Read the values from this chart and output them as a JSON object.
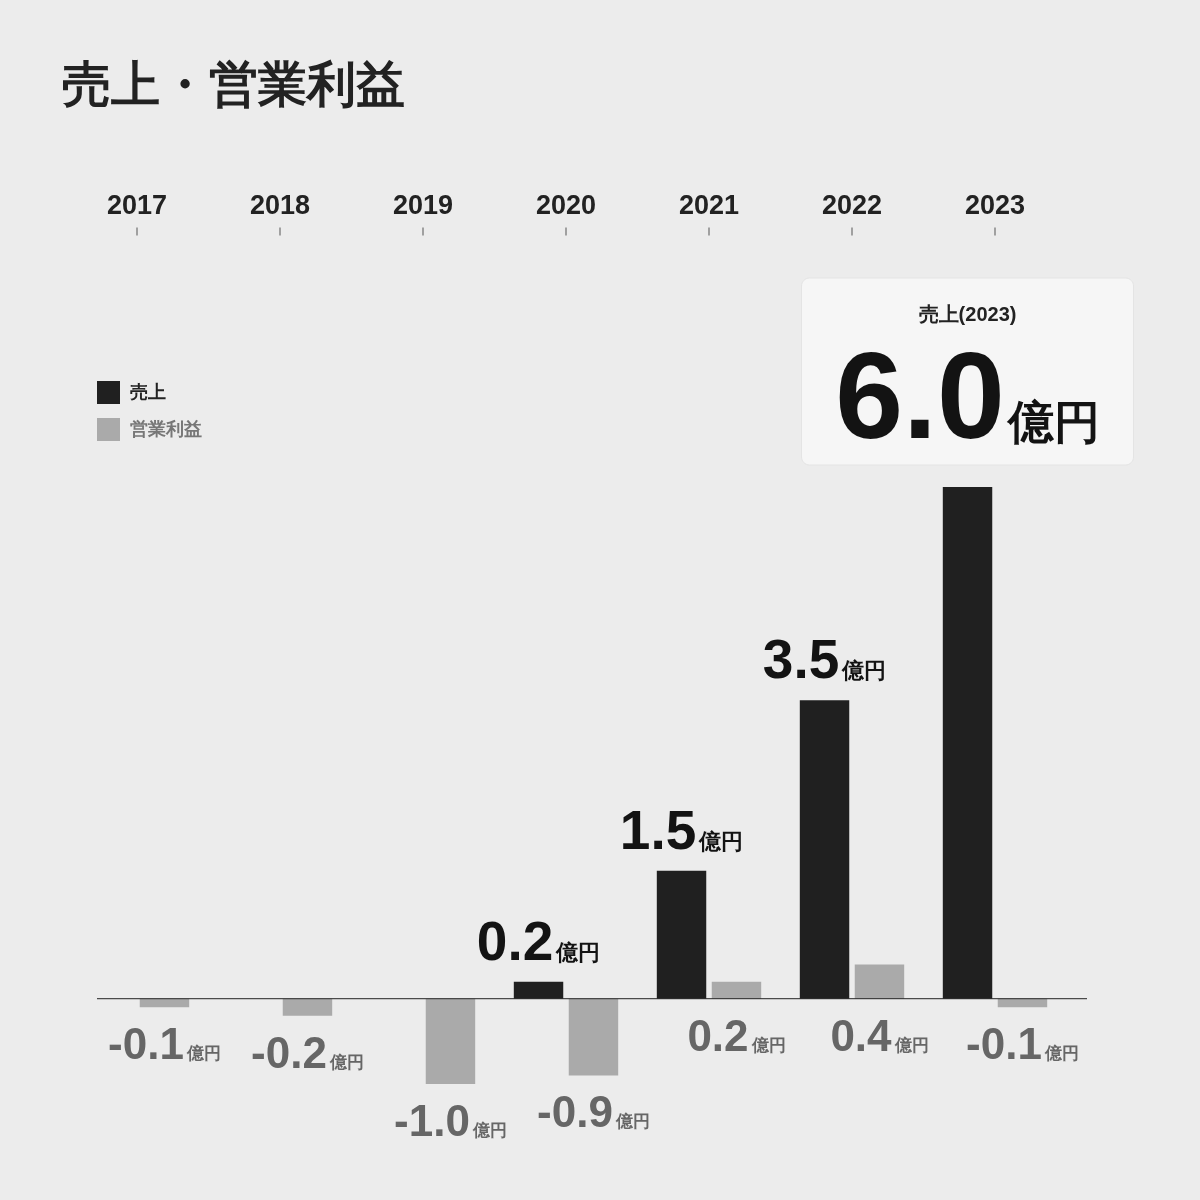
{
  "chart_data": {
    "type": "bar",
    "title": "売上・営業利益",
    "categories": [
      "2017",
      "2018",
      "2019",
      "2020",
      "2021",
      "2022",
      "2023"
    ],
    "series": [
      {
        "name": "売上",
        "color": "#202020",
        "values": [
          null,
          null,
          null,
          0.2,
          1.5,
          3.5,
          6.0
        ],
        "value_labels": [
          null,
          null,
          null,
          "0.2億円",
          "1.5億円",
          "3.5億円",
          "6.0億円"
        ]
      },
      {
        "name": "営業利益",
        "color": "#aaaaaa",
        "values": [
          -0.1,
          -0.2,
          -1.0,
          -0.9,
          0.2,
          0.4,
          -0.1
        ],
        "value_labels": [
          "-0.1億円",
          "-0.2億円",
          "-1.0億円",
          "-0.9億円",
          "0.2億円",
          "0.4億円",
          "-0.1億円"
        ]
      }
    ],
    "annotations": [
      "売上(2023)"
    ],
    "ref_lines": [
      {
        "axis": "y",
        "value": 0,
        "color": "#222222"
      }
    ],
    "tick_labels": "x",
    "legend": "top left"
  }
}
